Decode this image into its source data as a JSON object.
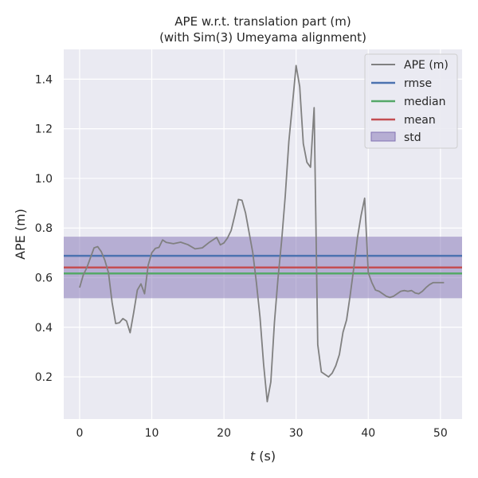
{
  "chart_data": {
    "type": "line",
    "title_line1": "APE w.r.t. translation part (m)",
    "title_line2": "(with Sim(3) Umeyama alignment)",
    "xlabel_var": "t",
    "xlabel_unit": " (s)",
    "ylabel": "APE (m)",
    "xlim": [
      -2.2,
      53
    ],
    "ylim": [
      0.03,
      1.52
    ],
    "xticks": [
      0,
      10,
      20,
      30,
      40,
      50
    ],
    "yticks": [
      0.2,
      0.4,
      0.6,
      0.8,
      1.0,
      1.2,
      1.4
    ],
    "ytick_labels": [
      "0.2",
      "0.4",
      "0.6",
      "0.8",
      "1.0",
      "1.2",
      "1.4"
    ],
    "grid": true,
    "legend_position": "top-right",
    "background": "#eaeaf2",
    "series": [
      {
        "name": "APE (m)",
        "color": "#808080",
        "x": [
          0,
          0.5,
          1,
          1.5,
          2,
          2.5,
          3,
          3.5,
          4,
          4.5,
          5,
          5.5,
          6,
          6.5,
          7,
          7.5,
          8,
          8.5,
          9,
          9.5,
          10,
          10.5,
          11,
          11.5,
          12,
          13,
          14,
          15,
          16,
          17,
          18,
          19,
          19.5,
          20,
          20.5,
          21,
          21.5,
          22,
          22.5,
          23,
          23.5,
          24,
          24.5,
          25,
          25.5,
          26,
          26.5,
          27,
          27.5,
          28,
          28.5,
          29,
          29.5,
          30,
          30.5,
          31,
          31.5,
          32,
          32.5,
          33,
          33.5,
          34,
          34.5,
          35,
          35.5,
          36,
          36.5,
          37,
          37.5,
          38,
          38.5,
          39,
          39.5,
          40,
          40.5,
          41,
          41.5,
          42,
          42.5,
          43,
          43.5,
          44,
          44.5,
          45,
          45.5,
          46,
          46.5,
          47,
          47.5,
          48,
          48.5,
          49,
          49.5,
          50,
          50.5
        ],
        "y": [
          0.56,
          0.61,
          0.64,
          0.68,
          0.72,
          0.725,
          0.705,
          0.67,
          0.62,
          0.5,
          0.415,
          0.418,
          0.435,
          0.425,
          0.378,
          0.46,
          0.55,
          0.575,
          0.535,
          0.65,
          0.7,
          0.718,
          0.722,
          0.752,
          0.742,
          0.737,
          0.743,
          0.733,
          0.716,
          0.72,
          0.743,
          0.762,
          0.732,
          0.74,
          0.76,
          0.79,
          0.85,
          0.915,
          0.912,
          0.86,
          0.78,
          0.7,
          0.58,
          0.44,
          0.25,
          0.1,
          0.18,
          0.42,
          0.6,
          0.75,
          0.93,
          1.15,
          1.3,
          1.455,
          1.37,
          1.14,
          1.065,
          1.045,
          1.285,
          0.33,
          0.22,
          0.21,
          0.2,
          0.215,
          0.245,
          0.29,
          0.38,
          0.43,
          0.53,
          0.64,
          0.76,
          0.85,
          0.92,
          0.62,
          0.58,
          0.55,
          0.545,
          0.535,
          0.525,
          0.52,
          0.525,
          0.535,
          0.545,
          0.548,
          0.545,
          0.548,
          0.538,
          0.535,
          0.545,
          0.56,
          0.572,
          0.58,
          0.58,
          0.58,
          0.58
        ]
      },
      {
        "name": "rmse",
        "color": "#4c72b0",
        "value": 0.688
      },
      {
        "name": "median",
        "color": "#55a868",
        "value": 0.617
      },
      {
        "name": "mean",
        "color": "#c44e52",
        "value": 0.641
      },
      {
        "name": "std",
        "color": "#8172b3",
        "band": [
          0.517,
          0.765
        ]
      }
    ]
  }
}
